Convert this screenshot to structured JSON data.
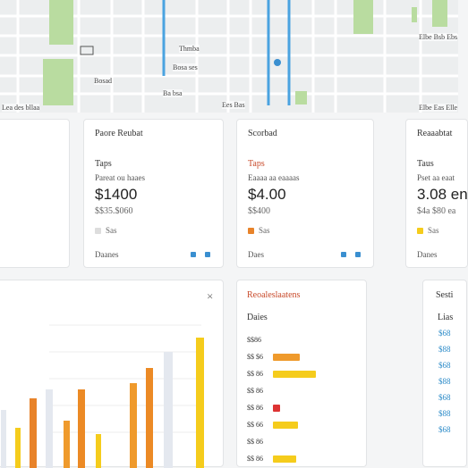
{
  "map": {
    "labels": [
      "Thmba",
      "Bosa ses",
      "Bosad",
      "Ba bsa",
      "Lea des bllaa",
      "Ees Bas",
      "Elbe Bsb Ebs",
      "Elbe Eas Elle"
    ]
  },
  "cards": [
    {
      "title": "Paore Reubat",
      "sub": "Taps",
      "caption": "Pareat ou haaes",
      "value": "$1400",
      "detail": "$$35.$060",
      "legend": "Sas",
      "footer": "Daanes"
    },
    {
      "title": "Scorbad",
      "sub": "Taps",
      "caption": "Eaaaa aa eaaaas",
      "value": "$4.00",
      "detail": "$$400",
      "legend": "Sas",
      "footer": "Daes"
    },
    {
      "title": "Reaaabtat",
      "sub": "Taus",
      "caption": "Pset aa eaat",
      "value": "3.08 en",
      "detail": "$4a $80 ea",
      "legend": "Sas",
      "footer": "Danes"
    }
  ],
  "close": "×",
  "list": {
    "title": "Reoaleslaatens",
    "sub": "Daies",
    "rows": [
      "$$86",
      "$$ $6",
      "$$ 86",
      "$$ 86",
      "$$ 86",
      "$$ 66",
      "$$ 86",
      "$$ 86"
    ]
  },
  "side": {
    "title": "Sesti",
    "sub": "Lias",
    "rows": [
      "$68",
      "$88",
      "$68",
      "$88",
      "$68",
      "$88",
      "$68"
    ]
  }
}
